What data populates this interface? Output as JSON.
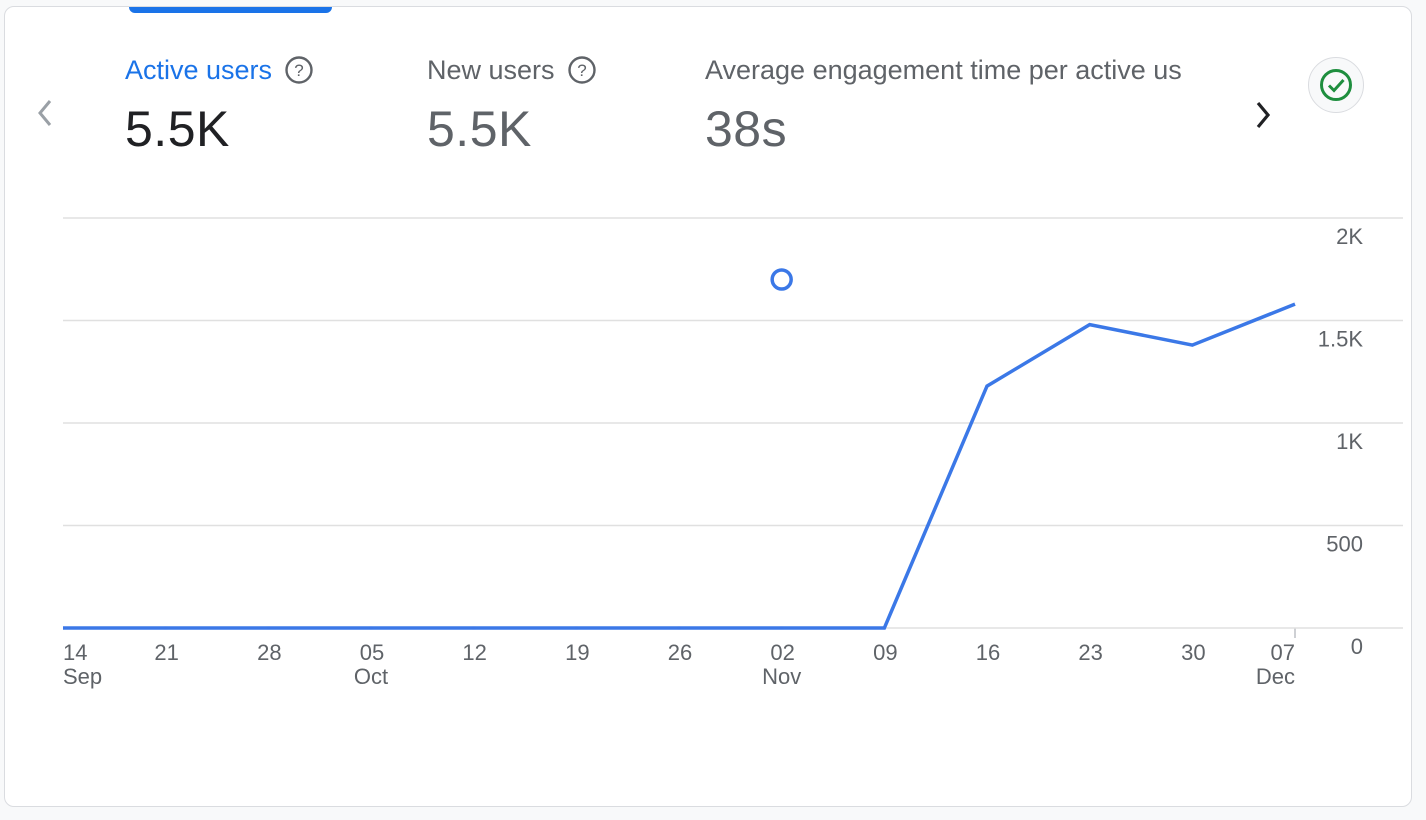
{
  "metrics": [
    {
      "label": "Active users",
      "value": "5.5K",
      "selected": true
    },
    {
      "label": "New users",
      "value": "5.5K",
      "selected": false
    },
    {
      "label": "Average engagement time per active us",
      "value": "38s",
      "selected": false
    }
  ],
  "icons": {
    "prev": "chevron-left-icon",
    "next": "chevron-right-icon",
    "help": "help-circle-icon",
    "status": "check-circle-icon"
  },
  "colors": {
    "accent": "#1a73e8",
    "line": "#3b78e7",
    "check": "#1e8e3e",
    "grid": "#e0e0e0",
    "axis": "#5f6368"
  },
  "chart_data": {
    "type": "line",
    "x": [
      "14 Sep",
      "21 Sep",
      "28 Sep",
      "05 Oct",
      "12 Oct",
      "19 Oct",
      "26 Oct",
      "02 Nov",
      "09 Nov",
      "16 Nov",
      "23 Nov",
      "30 Nov",
      "07 Dec"
    ],
    "x_tick_labels": [
      {
        "day": "14",
        "month": "Sep"
      },
      {
        "day": "21",
        "month": ""
      },
      {
        "day": "28",
        "month": ""
      },
      {
        "day": "05",
        "month": "Oct"
      },
      {
        "day": "12",
        "month": ""
      },
      {
        "day": "19",
        "month": ""
      },
      {
        "day": "26",
        "month": ""
      },
      {
        "day": "02",
        "month": "Nov"
      },
      {
        "day": "09",
        "month": ""
      },
      {
        "day": "16",
        "month": ""
      },
      {
        "day": "23",
        "month": ""
      },
      {
        "day": "30",
        "month": ""
      },
      {
        "day": "07",
        "month": "Dec"
      }
    ],
    "series": [
      {
        "values": [
          0,
          0,
          0,
          0,
          0,
          0,
          0,
          0,
          0,
          1180,
          1480,
          1380,
          1580
        ]
      }
    ],
    "annotation_marker": {
      "x": "02 Nov",
      "y": 1700
    },
    "yticks": [
      {
        "v": 0,
        "label": "0"
      },
      {
        "v": 500,
        "label": "500"
      },
      {
        "v": 1000,
        "label": "1K"
      },
      {
        "v": 1500,
        "label": "1.5K"
      },
      {
        "v": 2000,
        "label": "2K"
      }
    ],
    "ylim": [
      0,
      2000
    ],
    "y_axis_side": "right",
    "grid": true
  }
}
